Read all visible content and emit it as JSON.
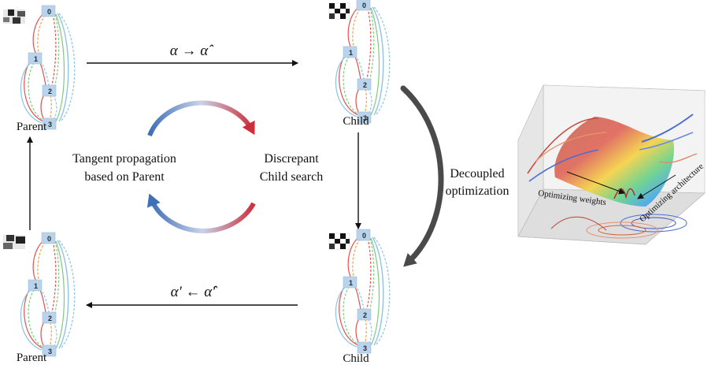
{
  "labels": {
    "parent_top": "Parent",
    "parent_bottom": "Parent",
    "child_top": "Child",
    "child_bottom": "Child",
    "arrow_top": "α → α̂",
    "arrow_bottom": "α′ ← α̂′",
    "tangent_line1": "Tangent propagation",
    "tangent_line2": "based on Parent",
    "discrepant_line1": "Discrepant",
    "discrepant_line2": "Child search",
    "decoupled_line1": "Decoupled",
    "decoupled_line2": "optimization",
    "opt_weights": "Optimizing weights",
    "opt_arch": "Optimizing architecture"
  },
  "cell_nodes": [
    "0",
    "1",
    "2",
    "3"
  ],
  "colors": {
    "red": "#e0524f",
    "orange": "#f0a050",
    "green": "#7fc97f",
    "blue": "#8ec3e8",
    "node_fill": "#b9d3ea",
    "cycle_blue": "#3f6fb5",
    "cycle_red": "#cc2f3a"
  }
}
